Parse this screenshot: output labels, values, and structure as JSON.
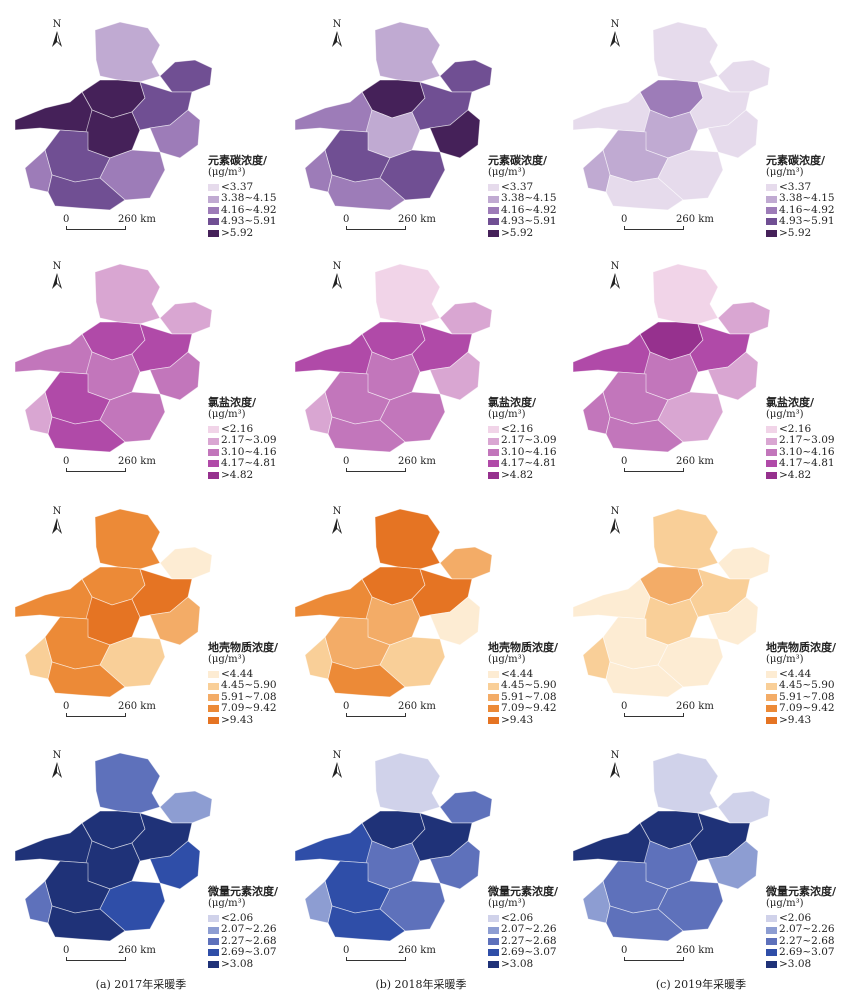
{
  "captions": [
    "(a) 2017年采暖季",
    "(b) 2018年采暖季",
    "(c) 2019年采暖季"
  ],
  "north_label": "N",
  "scale_labels": [
    "0",
    "260 km"
  ],
  "legends": [
    {
      "title": "元素碳浓度/",
      "unit": "(μg/m³)",
      "items": [
        "<3.37",
        "3.38~4.15",
        "4.16~4.92",
        "4.93~5.91",
        ">5.92"
      ],
      "colors": [
        "#e6dbec",
        "#c0aad2",
        "#9d7cb8",
        "#704f93",
        "#452159"
      ]
    },
    {
      "title": "氯盐浓度/",
      "unit": "(μg/m³)",
      "items": [
        "<2.16",
        "2.17~3.09",
        "3.10~4.16",
        "4.17~4.81",
        ">4.82"
      ],
      "colors": [
        "#f1d4e8",
        "#d9a6d2",
        "#c276bb",
        "#b04aa8",
        "#96318e"
      ]
    },
    {
      "title": "地壳物质浓度/",
      "unit": "(μg/m³)",
      "items": [
        "<4.44",
        "4.45~5.90",
        "5.91~7.08",
        "7.09~9.42",
        ">9.43"
      ],
      "colors": [
        "#fdecd3",
        "#f9cf98",
        "#f3ac67",
        "#ec8a37",
        "#e57423"
      ]
    },
    {
      "title": "微量元素浓度/",
      "unit": "(μg/m³)",
      "items": [
        "<2.06",
        "2.07~2.26",
        "2.27~2.68",
        "2.69~3.07",
        ">3.08"
      ],
      "colors": [
        "#d0d2ea",
        "#8d9dd2",
        "#5e71bb",
        "#2f4ea8",
        "#1f3278"
      ]
    }
  ],
  "map_classes": [
    [
      [
        1,
        3,
        4,
        4,
        4,
        3,
        2,
        3,
        2,
        2,
        3
      ],
      [
        1,
        3,
        4,
        2,
        1,
        3,
        4,
        3,
        2,
        3,
        2
      ],
      [
        0,
        0,
        2,
        0,
        1,
        0,
        0,
        1,
        1,
        0,
        0
      ]
    ],
    [
      [
        1,
        1,
        3,
        2,
        2,
        3,
        2,
        3,
        1,
        2,
        3
      ],
      [
        0,
        1,
        3,
        3,
        2,
        3,
        1,
        2,
        1,
        2,
        2
      ],
      [
        0,
        1,
        4,
        3,
        2,
        3,
        1,
        2,
        2,
        1,
        2
      ]
    ],
    [
      [
        3,
        0,
        3,
        3,
        4,
        4,
        2,
        3,
        1,
        1,
        3
      ],
      [
        4,
        2,
        4,
        3,
        2,
        4,
        0,
        2,
        1,
        1,
        3
      ],
      [
        1,
        0,
        2,
        0,
        1,
        1,
        0,
        0,
        1,
        0,
        0
      ]
    ],
    [
      [
        2,
        1,
        4,
        4,
        4,
        4,
        3,
        4,
        2,
        3,
        4
      ],
      [
        0,
        2,
        4,
        3,
        2,
        4,
        2,
        3,
        1,
        2,
        3
      ],
      [
        0,
        0,
        4,
        4,
        2,
        4,
        1,
        2,
        1,
        2,
        2
      ]
    ]
  ]
}
